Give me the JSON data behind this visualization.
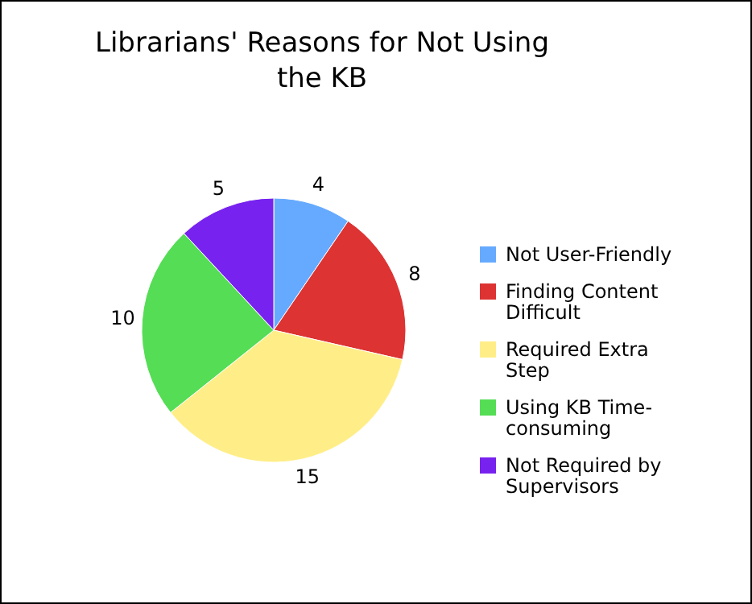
{
  "chart_data": {
    "type": "pie",
    "title": "Librarians' Reasons for Not Using the KB",
    "categories": [
      "Not User-Friendly",
      "Finding Content Difficult",
      "Required Extra Step",
      "Using KB Time-consuming",
      "Not Required by Supervisors"
    ],
    "values": [
      4,
      8,
      15,
      10,
      5
    ],
    "colors": [
      "#66aaff",
      "#dd3333",
      "#ffee88",
      "#55dd55",
      "#7722ee"
    ],
    "data_labels": true,
    "legend": "right"
  }
}
